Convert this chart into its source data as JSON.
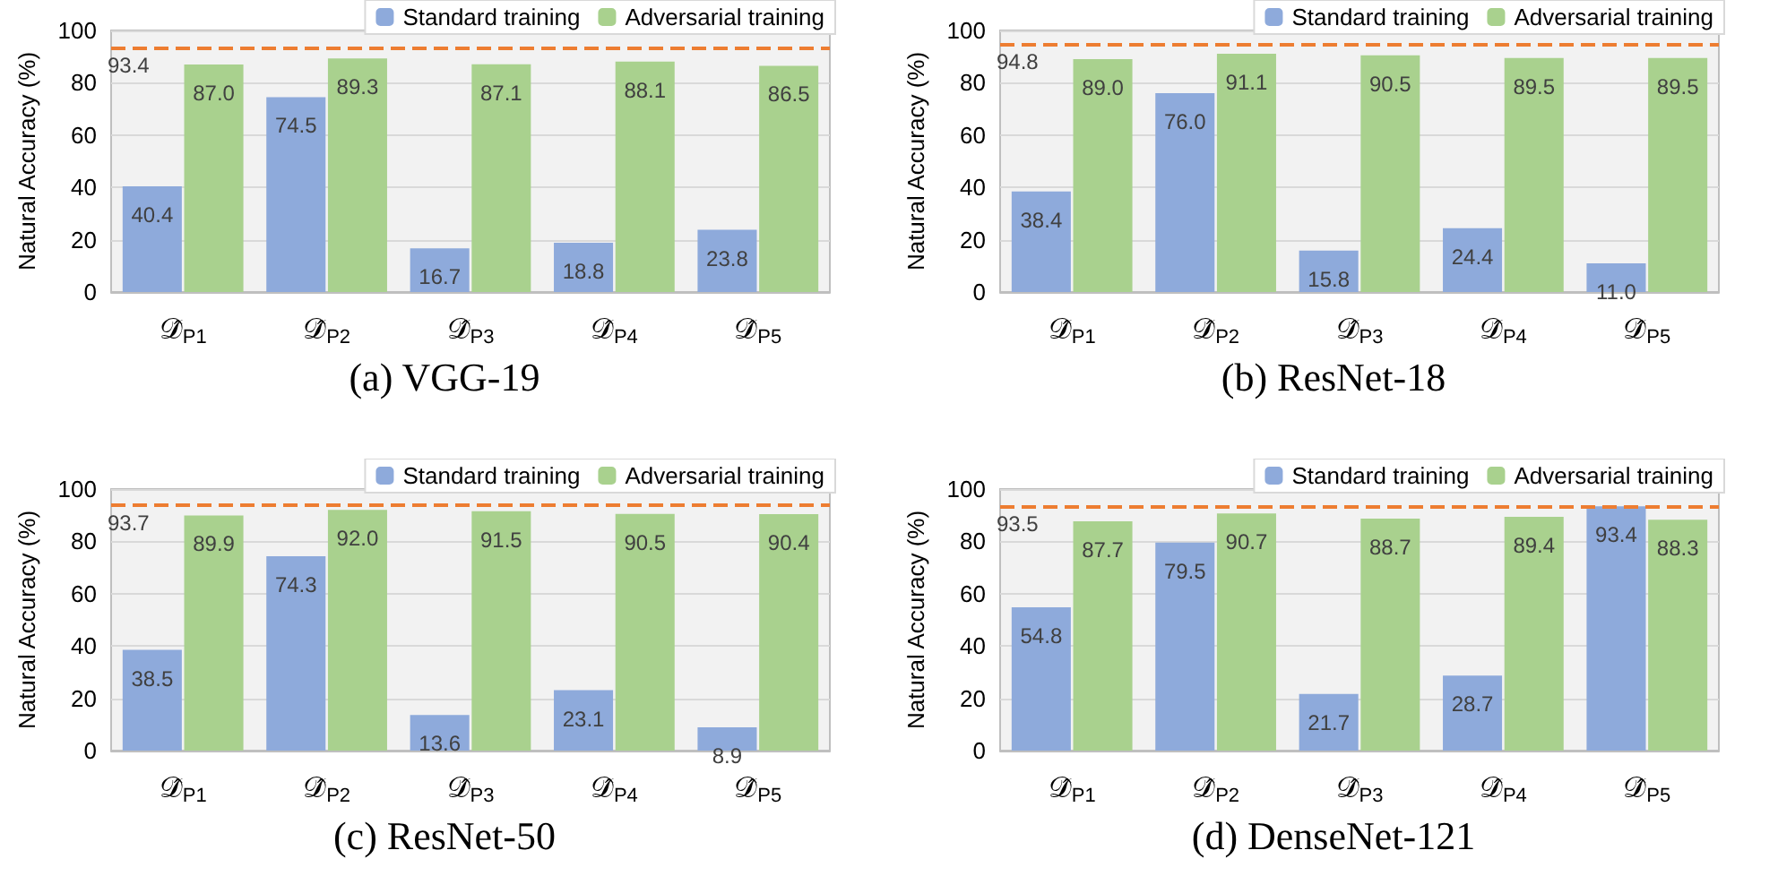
{
  "chart_data": [
    {
      "type": "bar",
      "title": "(a)  VGG-19",
      "ylabel": "Natural Accuracy (%)",
      "categories": [
        "𝒟̂$_{P1}$",
        "𝒟̂$_{P2}$",
        "𝒟̂$_{P3}$",
        "𝒟̂$_{P4}$",
        "𝒟̂$_{P5}$"
      ],
      "series": [
        {
          "name": "Standard training",
          "color": "#8eaadb",
          "values": [
            40.4,
            74.5,
            16.7,
            18.8,
            23.8
          ]
        },
        {
          "name": "Adversarial training",
          "color": "#a9d18e",
          "values": [
            87.0,
            89.3,
            87.1,
            88.1,
            86.5
          ]
        }
      ],
      "value_labels": [
        [
          "40.4",
          "74.5",
          "16.7",
          "18.8",
          "23.8"
        ],
        [
          "87.0",
          "89.3",
          "87.1",
          "88.1",
          "86.5"
        ]
      ],
      "ylim": [
        0,
        100
      ],
      "yticks": [
        0,
        20,
        40,
        60,
        80,
        100
      ],
      "grid": "y",
      "legend": "top right",
      "ref_lines": [
        {
          "axis": "y",
          "value": 93.4,
          "label": "93.4",
          "color": "#ed7d31",
          "line_style": "dashed"
        }
      ]
    },
    {
      "type": "bar",
      "title": "(b)  ResNet-18",
      "ylabel": "Natural Accuracy (%)",
      "categories": [
        "𝒟̂$_{P1}$",
        "𝒟̂$_{P2}$",
        "𝒟̂$_{P3}$",
        "𝒟̂$_{P4}$",
        "𝒟̂$_{P5}$"
      ],
      "series": [
        {
          "name": "Standard training",
          "color": "#8eaadb",
          "values": [
            38.4,
            76.0,
            15.8,
            24.4,
            11.0
          ]
        },
        {
          "name": "Adversarial training",
          "color": "#a9d18e",
          "values": [
            89.0,
            91.1,
            90.5,
            89.5,
            89.5
          ]
        }
      ],
      "value_labels": [
        [
          "38.4",
          "76.0",
          "15.8",
          "24.4",
          "11.0"
        ],
        [
          "89.0",
          "91.1",
          "90.5",
          "89.5",
          "89.5"
        ]
      ],
      "ylim": [
        0,
        100
      ],
      "yticks": [
        0,
        20,
        40,
        60,
        80,
        100
      ],
      "grid": "y",
      "legend": "top right",
      "ref_lines": [
        {
          "axis": "y",
          "value": 94.8,
          "label": "94.8",
          "color": "#ed7d31",
          "line_style": "dashed"
        }
      ]
    },
    {
      "type": "bar",
      "title": "(c)  ResNet-50",
      "ylabel": "Natural Accuracy (%)",
      "categories": [
        "𝒟̂$_{P1}$",
        "𝒟̂$_{P2}$",
        "𝒟̂$_{P3}$",
        "𝒟̂$_{P4}$",
        "𝒟̂$_{P5}$"
      ],
      "series": [
        {
          "name": "Standard training",
          "color": "#8eaadb",
          "values": [
            38.5,
            74.3,
            13.6,
            23.1,
            8.9
          ]
        },
        {
          "name": "Adversarial training",
          "color": "#a9d18e",
          "values": [
            89.9,
            92.0,
            91.5,
            90.5,
            90.4
          ]
        }
      ],
      "value_labels": [
        [
          "38.5",
          "74.3",
          "13.6",
          "23.1",
          "8.9"
        ],
        [
          "89.9",
          "92.0",
          "91.5",
          "90.5",
          "90.4"
        ]
      ],
      "ylim": [
        0,
        100
      ],
      "yticks": [
        0,
        20,
        40,
        60,
        80,
        100
      ],
      "grid": "y",
      "legend": "top right",
      "ref_lines": [
        {
          "axis": "y",
          "value": 93.7,
          "label": "93.7",
          "color": "#ed7d31",
          "line_style": "dashed"
        }
      ]
    },
    {
      "type": "bar",
      "title": "(d)  DenseNet-121",
      "ylabel": "Natural Accuracy (%)",
      "categories": [
        "𝒟̂$_{P1}$",
        "𝒟̂$_{P2}$",
        "𝒟̂$_{P3}$",
        "𝒟̂$_{P4}$",
        "𝒟̂$_{P5}$"
      ],
      "series": [
        {
          "name": "Standard training",
          "color": "#8eaadb",
          "values": [
            54.8,
            79.5,
            21.7,
            28.7,
            93.4
          ]
        },
        {
          "name": "Adversarial training",
          "color": "#a9d18e",
          "values": [
            87.7,
            90.7,
            88.7,
            89.4,
            88.3
          ]
        }
      ],
      "value_labels": [
        [
          "54.8",
          "79.5",
          "21.7",
          "28.7",
          "93.4"
        ],
        [
          "87.7",
          "90.7",
          "88.7",
          "89.4",
          "88.3"
        ]
      ],
      "ylim": [
        0,
        100
      ],
      "yticks": [
        0,
        20,
        40,
        60,
        80,
        100
      ],
      "grid": "y",
      "legend": "top right",
      "ref_lines": [
        {
          "axis": "y",
          "value": 93.5,
          "label": "93.5",
          "color": "#ed7d31",
          "line_style": "dashed"
        }
      ]
    }
  ]
}
